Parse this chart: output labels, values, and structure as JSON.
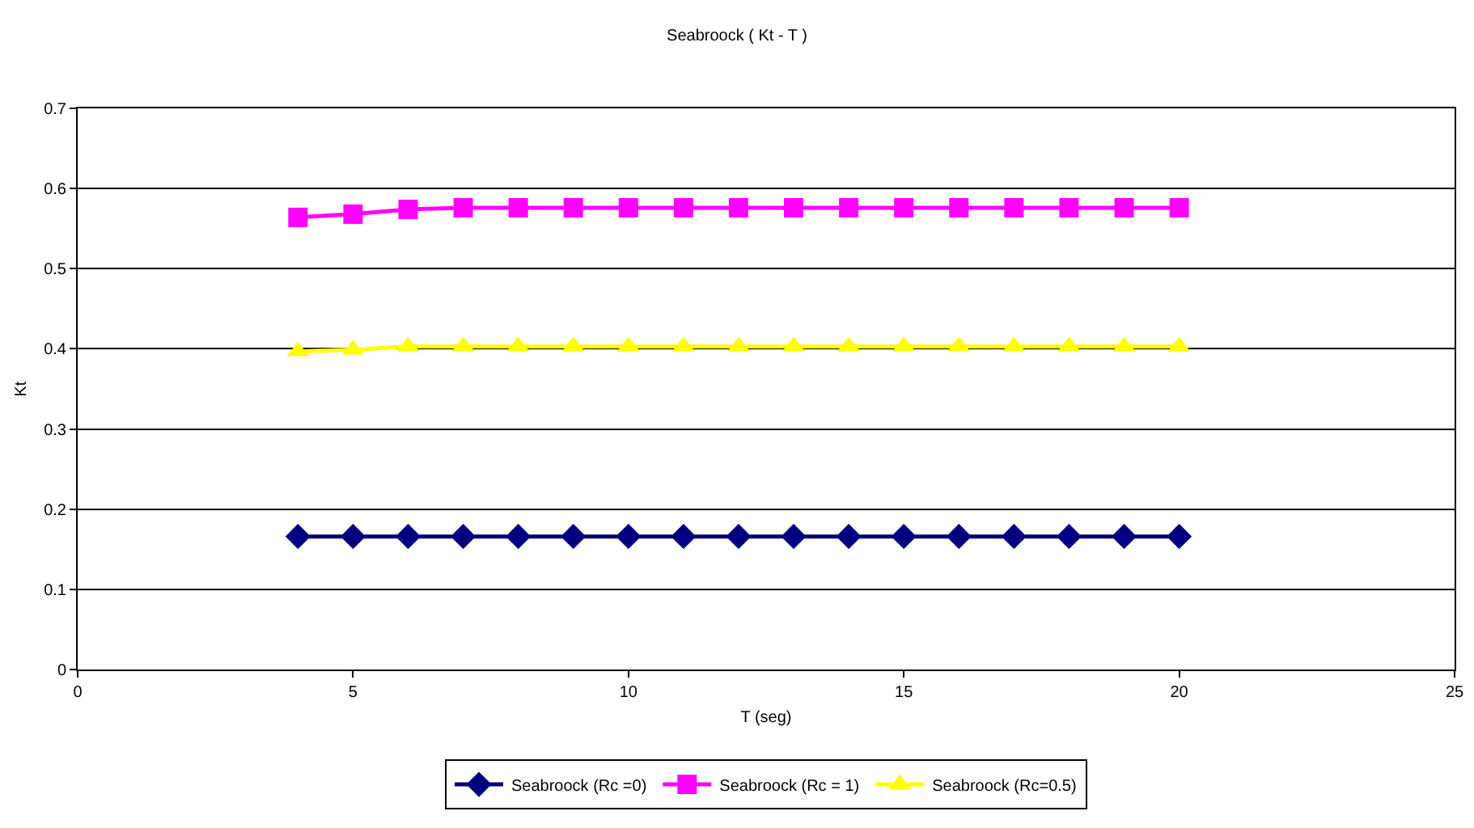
{
  "chart_data": {
    "type": "line",
    "title": "Seabroock ( Kt - T )",
    "xlabel": "T (seg)",
    "ylabel": "Kt",
    "x": [
      4,
      5,
      6,
      7,
      8,
      9,
      10,
      11,
      12,
      13,
      14,
      15,
      16,
      17,
      18,
      19,
      20
    ],
    "series": [
      {
        "name": "Seabroock (Rc =0)",
        "color": "#000080",
        "marker": "diamond",
        "values": [
          0.166,
          0.166,
          0.166,
          0.166,
          0.166,
          0.166,
          0.166,
          0.166,
          0.166,
          0.166,
          0.166,
          0.166,
          0.166,
          0.166,
          0.166,
          0.166,
          0.166
        ]
      },
      {
        "name": "Seabroock (Rc = 1)",
        "color": "#ff00ff",
        "marker": "square",
        "values": [
          0.564,
          0.568,
          0.574,
          0.576,
          0.576,
          0.576,
          0.576,
          0.576,
          0.576,
          0.576,
          0.576,
          0.576,
          0.576,
          0.576,
          0.576,
          0.576,
          0.576
        ]
      },
      {
        "name": "Seabroock (Rc=0.5)",
        "color": "#ffff00",
        "marker": "triangle",
        "values": [
          0.397,
          0.399,
          0.403,
          0.403,
          0.403,
          0.403,
          0.403,
          0.403,
          0.403,
          0.403,
          0.403,
          0.403,
          0.403,
          0.403,
          0.403,
          0.403,
          0.403
        ]
      }
    ],
    "xlim": [
      0,
      25
    ],
    "xticks": [
      0,
      5,
      10,
      15,
      20,
      25
    ],
    "ylim": [
      0,
      0.7
    ],
    "yticks": [
      0,
      0.1,
      0.2,
      0.3,
      0.4,
      0.5,
      0.6,
      0.7
    ],
    "grid": "y",
    "legend": "bottom",
    "line_style": "solid"
  }
}
